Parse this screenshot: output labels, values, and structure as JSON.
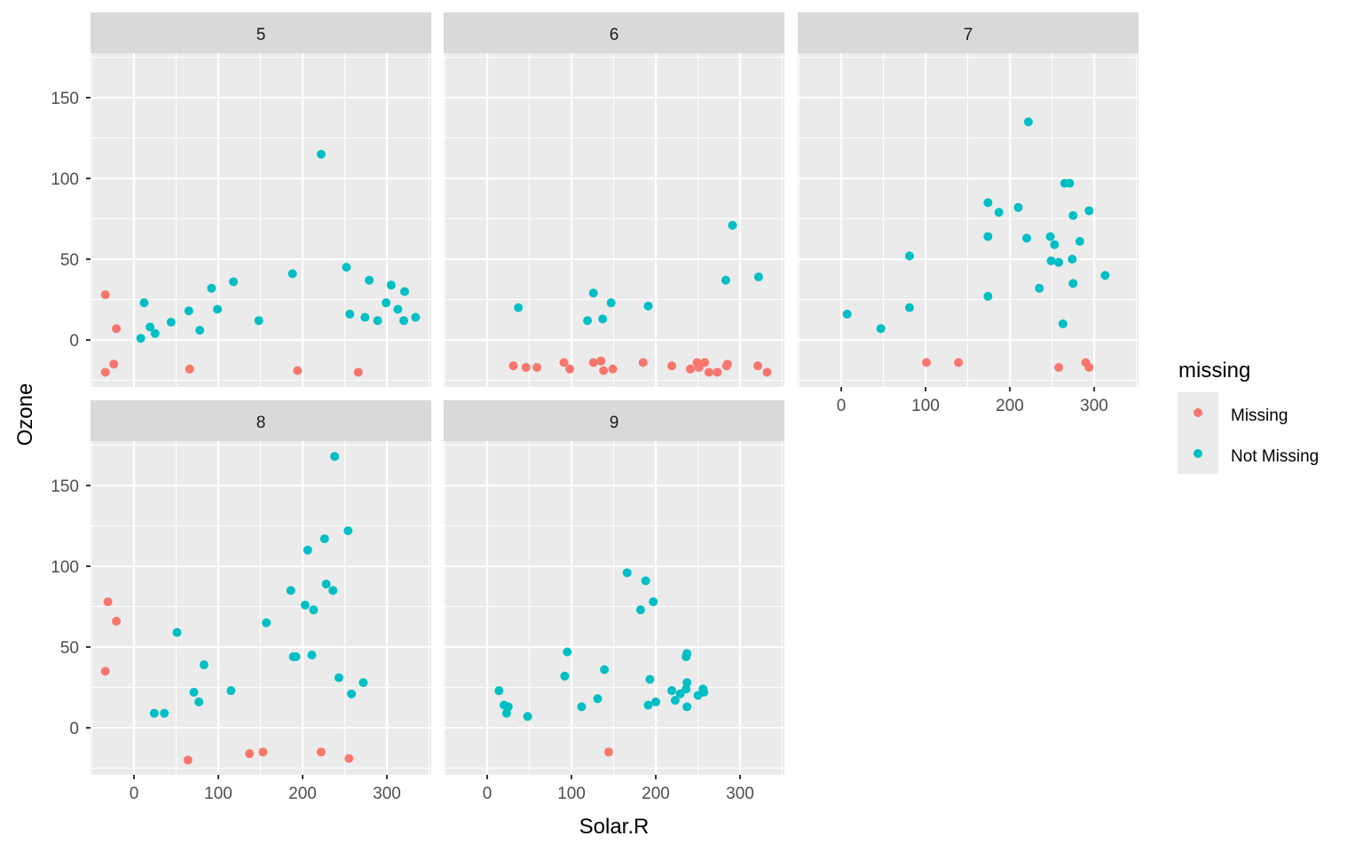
{
  "chart_data": {
    "type": "scatter",
    "title": "",
    "xlabel": "Solar.R",
    "ylabel": "Ozone",
    "xlim": [
      -51.6,
      352.6
    ],
    "ylim": [
      -29.1,
      177.5
    ],
    "x_ticks": [
      0,
      100,
      200,
      300
    ],
    "y_ticks": [
      0,
      50,
      100,
      150
    ],
    "x_tick_labels": [
      "0",
      "100",
      "200",
      "300"
    ],
    "y_tick_labels": [
      "0",
      "50",
      "100",
      "150"
    ],
    "grid": true,
    "facet_by": "Month",
    "legend": {
      "title": "missing",
      "position": "right",
      "entries": [
        {
          "label": "Missing",
          "color": "#F8766D"
        },
        {
          "label": "Not Missing",
          "color": "#00BFC4"
        }
      ]
    },
    "colors": {
      "Missing": "#F8766D",
      "Not Missing": "#00BFC4",
      "panel_bg": "#EBEBEB",
      "strip_bg": "#D9D9D9",
      "grid": "#FFFFFF"
    },
    "panels": [
      {
        "label": "5",
        "missing": [
          [
            -34,
            28
          ],
          [
            -21,
            7
          ],
          [
            -24,
            -15
          ],
          [
            -34,
            -20
          ],
          [
            66,
            -18
          ],
          [
            194,
            -19
          ],
          [
            266,
            -20
          ]
        ],
        "not_missing": [
          [
            12,
            23
          ],
          [
            19,
            8
          ],
          [
            25,
            4
          ],
          [
            8,
            1
          ],
          [
            44,
            11
          ],
          [
            65,
            18
          ],
          [
            78,
            6
          ],
          [
            92,
            32
          ],
          [
            99,
            19
          ],
          [
            118,
            36
          ],
          [
            148,
            12
          ],
          [
            188,
            41
          ],
          [
            222,
            115
          ],
          [
            252,
            45
          ],
          [
            256,
            16
          ],
          [
            274,
            14
          ],
          [
            279,
            37
          ],
          [
            289,
            12
          ],
          [
            299,
            23
          ],
          [
            305,
            34
          ],
          [
            313,
            19
          ],
          [
            320,
            12
          ],
          [
            321,
            30
          ],
          [
            334,
            14
          ]
        ]
      },
      {
        "label": "6",
        "missing": [
          [
            31,
            -16
          ],
          [
            46,
            -17
          ],
          [
            59,
            -17
          ],
          [
            91,
            -14
          ],
          [
            98,
            -18
          ],
          [
            126,
            -14
          ],
          [
            135,
            -13
          ],
          [
            138,
            -19
          ],
          [
            149,
            -18
          ],
          [
            185,
            -14
          ],
          [
            219,
            -16
          ],
          [
            241,
            -18
          ],
          [
            249,
            -14
          ],
          [
            251,
            -17
          ],
          [
            258,
            -14
          ],
          [
            263,
            -20
          ],
          [
            273,
            -20
          ],
          [
            285,
            -15
          ],
          [
            284,
            -16
          ],
          [
            321,
            -16
          ],
          [
            332,
            -20
          ]
        ],
        "not_missing": [
          [
            37,
            20
          ],
          [
            126,
            29
          ],
          [
            119,
            12
          ],
          [
            137,
            13
          ],
          [
            147,
            23
          ],
          [
            191,
            21
          ],
          [
            291,
            71
          ],
          [
            283,
            37
          ],
          [
            322,
            39
          ]
        ]
      },
      {
        "label": "7",
        "missing": [
          [
            101,
            -14
          ],
          [
            139,
            -14
          ],
          [
            258,
            -17
          ],
          [
            290,
            -14
          ],
          [
            294,
            -17
          ]
        ],
        "not_missing": [
          [
            7,
            16
          ],
          [
            47,
            7
          ],
          [
            81,
            52
          ],
          [
            81,
            20
          ],
          [
            174,
            85
          ],
          [
            174,
            64
          ],
          [
            174,
            27
          ],
          [
            187,
            79
          ],
          [
            210,
            82
          ],
          [
            222,
            135
          ],
          [
            220,
            63
          ],
          [
            235,
            32
          ],
          [
            248,
            64
          ],
          [
            249,
            49
          ],
          [
            253,
            59
          ],
          [
            258,
            48
          ],
          [
            263,
            10
          ],
          [
            265,
            97
          ],
          [
            271,
            97
          ],
          [
            275,
            77
          ],
          [
            275,
            35
          ],
          [
            274,
            50
          ],
          [
            283,
            61
          ],
          [
            294,
            80
          ],
          [
            313,
            40
          ]
        ]
      },
      {
        "label": "8",
        "missing": [
          [
            -31,
            78
          ],
          [
            -21,
            66
          ],
          [
            -34,
            35
          ],
          [
            64,
            -20
          ],
          [
            137,
            -16
          ],
          [
            153,
            -15
          ],
          [
            222,
            -15
          ],
          [
            255,
            -19
          ]
        ],
        "not_missing": [
          [
            238,
            168
          ],
          [
            254,
            122
          ],
          [
            226,
            117
          ],
          [
            206,
            110
          ],
          [
            186,
            85
          ],
          [
            228,
            89
          ],
          [
            236,
            85
          ],
          [
            203,
            76
          ],
          [
            213,
            73
          ],
          [
            157,
            65
          ],
          [
            51,
            59
          ],
          [
            83,
            39
          ],
          [
            189,
            44
          ],
          [
            192,
            44
          ],
          [
            211,
            45
          ],
          [
            243,
            31
          ],
          [
            272,
            28
          ],
          [
            258,
            21
          ],
          [
            71,
            22
          ],
          [
            77,
            16
          ],
          [
            115,
            23
          ],
          [
            24,
            9
          ],
          [
            36,
            9
          ]
        ]
      },
      {
        "label": "9",
        "missing": [
          [
            144,
            -15
          ]
        ],
        "not_missing": [
          [
            166,
            96
          ],
          [
            188,
            91
          ],
          [
            197,
            78
          ],
          [
            182,
            73
          ],
          [
            95,
            47
          ],
          [
            237,
            46
          ],
          [
            236,
            44
          ],
          [
            92,
            32
          ],
          [
            139,
            36
          ],
          [
            193,
            30
          ],
          [
            14,
            23
          ],
          [
            20,
            14
          ],
          [
            25,
            13
          ],
          [
            23,
            9
          ],
          [
            48,
            7
          ],
          [
            112,
            13
          ],
          [
            131,
            18
          ],
          [
            191,
            14
          ],
          [
            200,
            16
          ],
          [
            219,
            23
          ],
          [
            223,
            17
          ],
          [
            229,
            21
          ],
          [
            236,
            24
          ],
          [
            237,
            28
          ],
          [
            237,
            13
          ],
          [
            250,
            20
          ],
          [
            257,
            22
          ],
          [
            256,
            24
          ]
        ]
      }
    ]
  }
}
